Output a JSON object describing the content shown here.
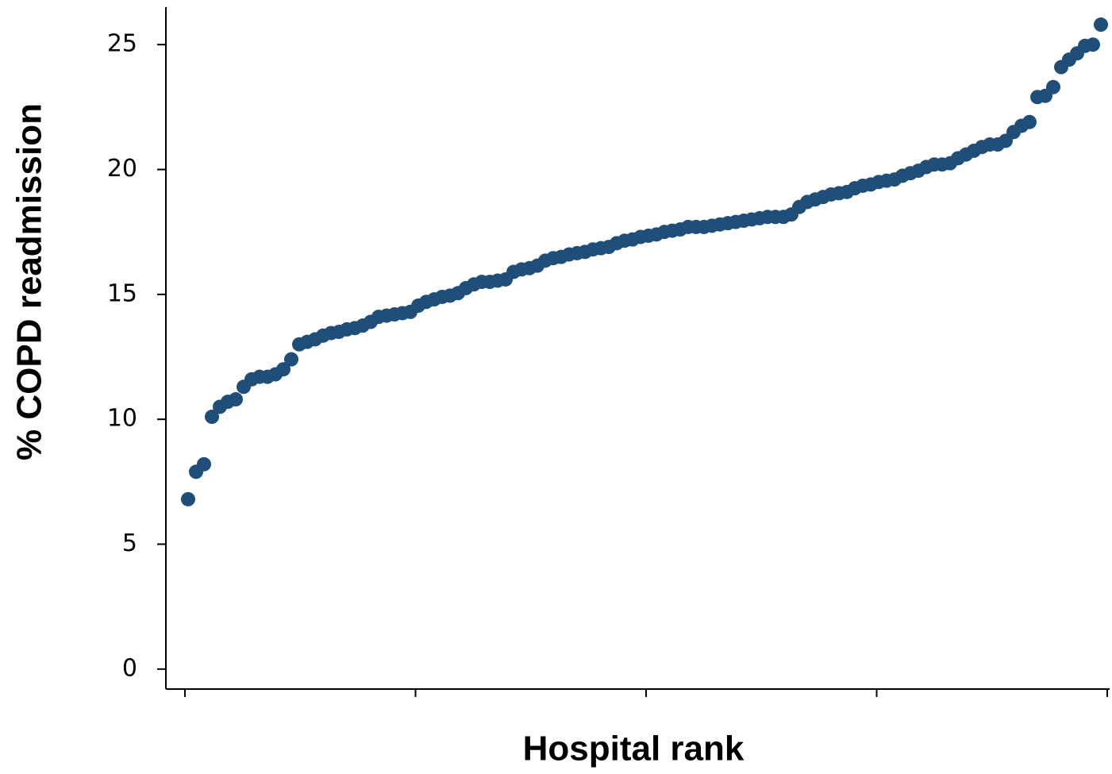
{
  "chart_data": {
    "type": "scatter",
    "x_label": "Hospital rank",
    "y_label": "% COPD readmission",
    "color": "#1f4e79",
    "ylim": [
      -0.8,
      26.5
    ],
    "yticks": [
      0,
      5,
      10,
      15,
      20,
      25
    ],
    "values": [
      6.8,
      7.9,
      8.2,
      10.1,
      10.5,
      10.7,
      10.8,
      11.3,
      11.6,
      11.7,
      11.7,
      11.8,
      12.0,
      12.4,
      13.0,
      13.1,
      13.2,
      13.35,
      13.45,
      13.5,
      13.6,
      13.65,
      13.75,
      13.9,
      14.1,
      14.15,
      14.2,
      14.25,
      14.3,
      14.55,
      14.7,
      14.8,
      14.9,
      14.95,
      15.05,
      15.25,
      15.4,
      15.5,
      15.5,
      15.55,
      15.6,
      15.9,
      16.0,
      16.05,
      16.15,
      16.35,
      16.45,
      16.5,
      16.6,
      16.65,
      16.7,
      16.8,
      16.85,
      16.9,
      17.05,
      17.15,
      17.2,
      17.3,
      17.35,
      17.4,
      17.5,
      17.55,
      17.6,
      17.7,
      17.7,
      17.7,
      17.75,
      17.8,
      17.85,
      17.9,
      17.95,
      18.0,
      18.05,
      18.1,
      18.1,
      18.1,
      18.2,
      18.5,
      18.7,
      18.8,
      18.9,
      19.0,
      19.05,
      19.1,
      19.25,
      19.35,
      19.4,
      19.5,
      19.55,
      19.6,
      19.75,
      19.85,
      19.95,
      20.1,
      20.2,
      20.2,
      20.25,
      20.45,
      20.6,
      20.75,
      20.9,
      21.0,
      21.0,
      21.15,
      21.5,
      21.75,
      21.9,
      22.9,
      22.95,
      23.3,
      24.1,
      24.4,
      24.65,
      24.95,
      25.0,
      25.8
    ]
  }
}
